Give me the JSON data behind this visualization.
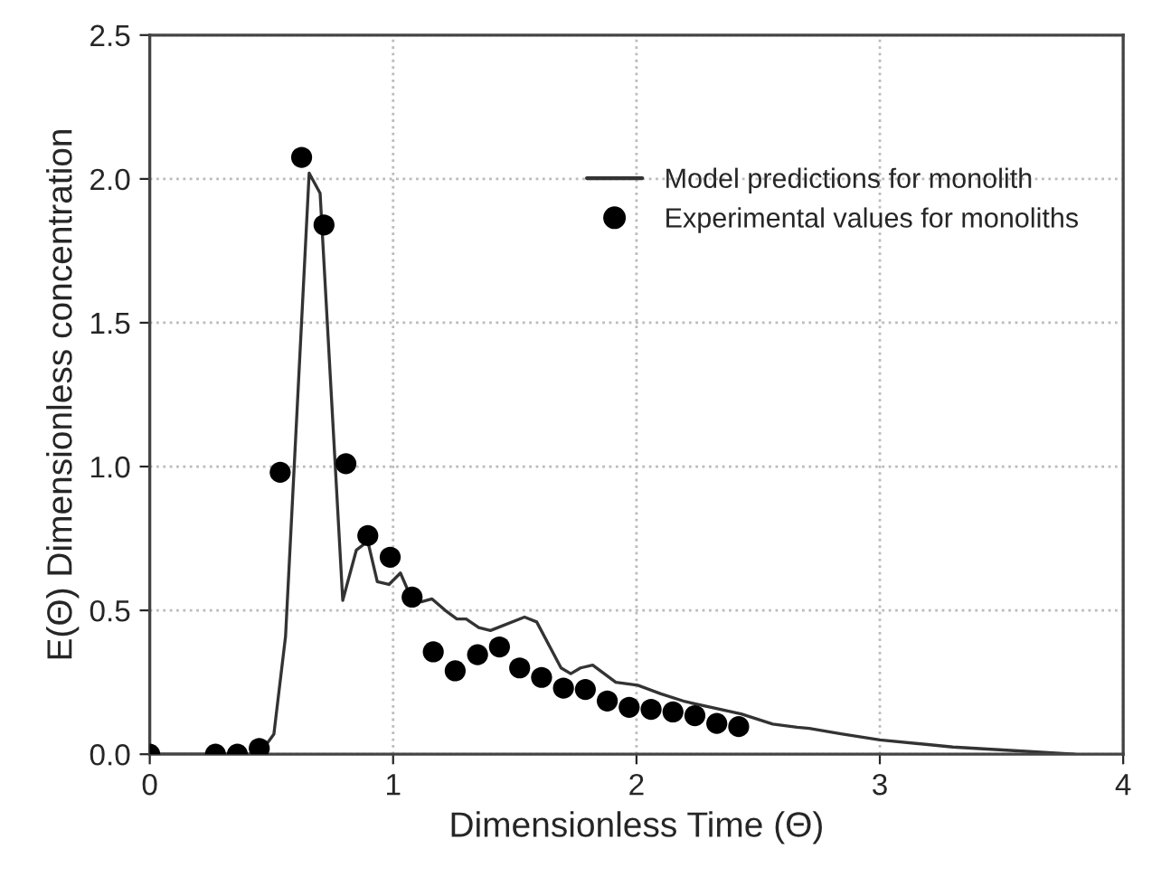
{
  "chart_data": {
    "type": "line",
    "xlabel": "Dimensionless Time (Θ)",
    "ylabel": "E(Θ) Dimensionless concentration",
    "xlim": [
      0,
      4
    ],
    "xticks": [
      0,
      1,
      2,
      3,
      4
    ],
    "ylim": [
      0,
      2.5
    ],
    "yticks": [
      {
        "value": 0,
        "label": "0.0"
      },
      {
        "value": 0.5,
        "label": "0.5"
      },
      {
        "value": 1,
        "label": "1.0"
      },
      {
        "value": 1.5,
        "label": "1.5"
      },
      {
        "value": 2,
        "label": "2.0"
      },
      {
        "value": 2.5,
        "label": "2.5"
      }
    ],
    "grid": true,
    "legend": "top right",
    "series": [
      {
        "name": "Model predictions for monolith",
        "color": "#333333",
        "marker": "none",
        "line_style": "solid",
        "x": [
          0,
          0.45,
          0.51,
          0.558,
          0.655,
          0.7,
          0.793,
          0.849,
          0.896,
          0.935,
          0.983,
          1.03,
          1.073,
          1.116,
          1.16,
          1.214,
          1.262,
          1.3,
          1.352,
          1.4,
          1.54,
          1.59,
          1.69,
          1.73,
          1.77,
          1.82,
          1.915,
          2.005,
          2.1,
          2.2,
          2.43,
          2.56,
          2.66,
          2.71,
          2.84,
          3.0,
          3.3,
          3.6,
          3.8
        ],
        "values": [
          0,
          0,
          0.07,
          0.41,
          2.02,
          1.95,
          0.535,
          0.71,
          0.74,
          0.6,
          0.59,
          0.63,
          0.546,
          0.53,
          0.54,
          0.5,
          0.47,
          0.47,
          0.44,
          0.43,
          0.477,
          0.46,
          0.3,
          0.28,
          0.3,
          0.31,
          0.25,
          0.24,
          0.21,
          0.183,
          0.14,
          0.105,
          0.094,
          0.09,
          0.071,
          0.05,
          0.025,
          0.01,
          0
        ]
      },
      {
        "name": "Experimental values for monoliths",
        "type": "scatter",
        "color": "#000000",
        "marker": "circle",
        "x": [
          0,
          0.27,
          0.36,
          0.45,
          0.536,
          0.624,
          0.716,
          0.806,
          0.896,
          0.988,
          1.078,
          1.165,
          1.255,
          1.347,
          1.437,
          1.52,
          1.61,
          1.7,
          1.79,
          1.88,
          1.97,
          2.06,
          2.15,
          2.24,
          2.33,
          2.42
        ],
        "values": [
          0,
          0,
          0,
          0.02,
          0.98,
          2.075,
          1.84,
          1.01,
          0.76,
          0.685,
          0.546,
          0.356,
          0.29,
          0.346,
          0.373,
          0.3,
          0.267,
          0.23,
          0.225,
          0.185,
          0.163,
          0.156,
          0.147,
          0.134,
          0.107,
          0.096
        ]
      }
    ]
  }
}
